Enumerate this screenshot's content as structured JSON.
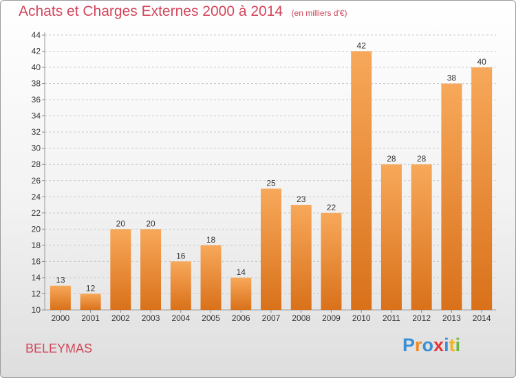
{
  "header": {
    "title": "Achats et Charges Externes 2000 à 2014",
    "unit": "(en milliers d'€)"
  },
  "commune": "BELEYMAS",
  "logo": {
    "letters": [
      {
        "ch": "P",
        "color": "#3a8fd6"
      },
      {
        "ch": "r",
        "color": "#f08a24"
      },
      {
        "ch": "o",
        "color": "#3a8fd6"
      },
      {
        "ch": "x",
        "color": "#e2363a"
      },
      {
        "ch": "i",
        "color": "#3a8fd6"
      },
      {
        "ch": "t",
        "color": "#f0b324"
      },
      {
        "ch": "i",
        "color": "#6ab83a"
      }
    ]
  },
  "chart_data": {
    "type": "bar",
    "title": "Achats et Charges Externes 2000 à 2014",
    "subtitle": "(en milliers d'€)",
    "xlabel": "",
    "ylabel": "",
    "categories": [
      "2000",
      "2001",
      "2002",
      "2003",
      "2004",
      "2005",
      "2006",
      "2007",
      "2008",
      "2009",
      "2010",
      "2011",
      "2012",
      "2013",
      "2014"
    ],
    "values": [
      13,
      12,
      20,
      20,
      16,
      18,
      14,
      25,
      23,
      22,
      42,
      28,
      28,
      38,
      40
    ],
    "ylim": [
      10,
      44
    ],
    "yticks": [
      10,
      12,
      14,
      16,
      18,
      20,
      22,
      24,
      26,
      28,
      30,
      32,
      34,
      36,
      38,
      40,
      42,
      44
    ],
    "grid": "horizontal-dashed",
    "bar_color": "#f0912e"
  }
}
